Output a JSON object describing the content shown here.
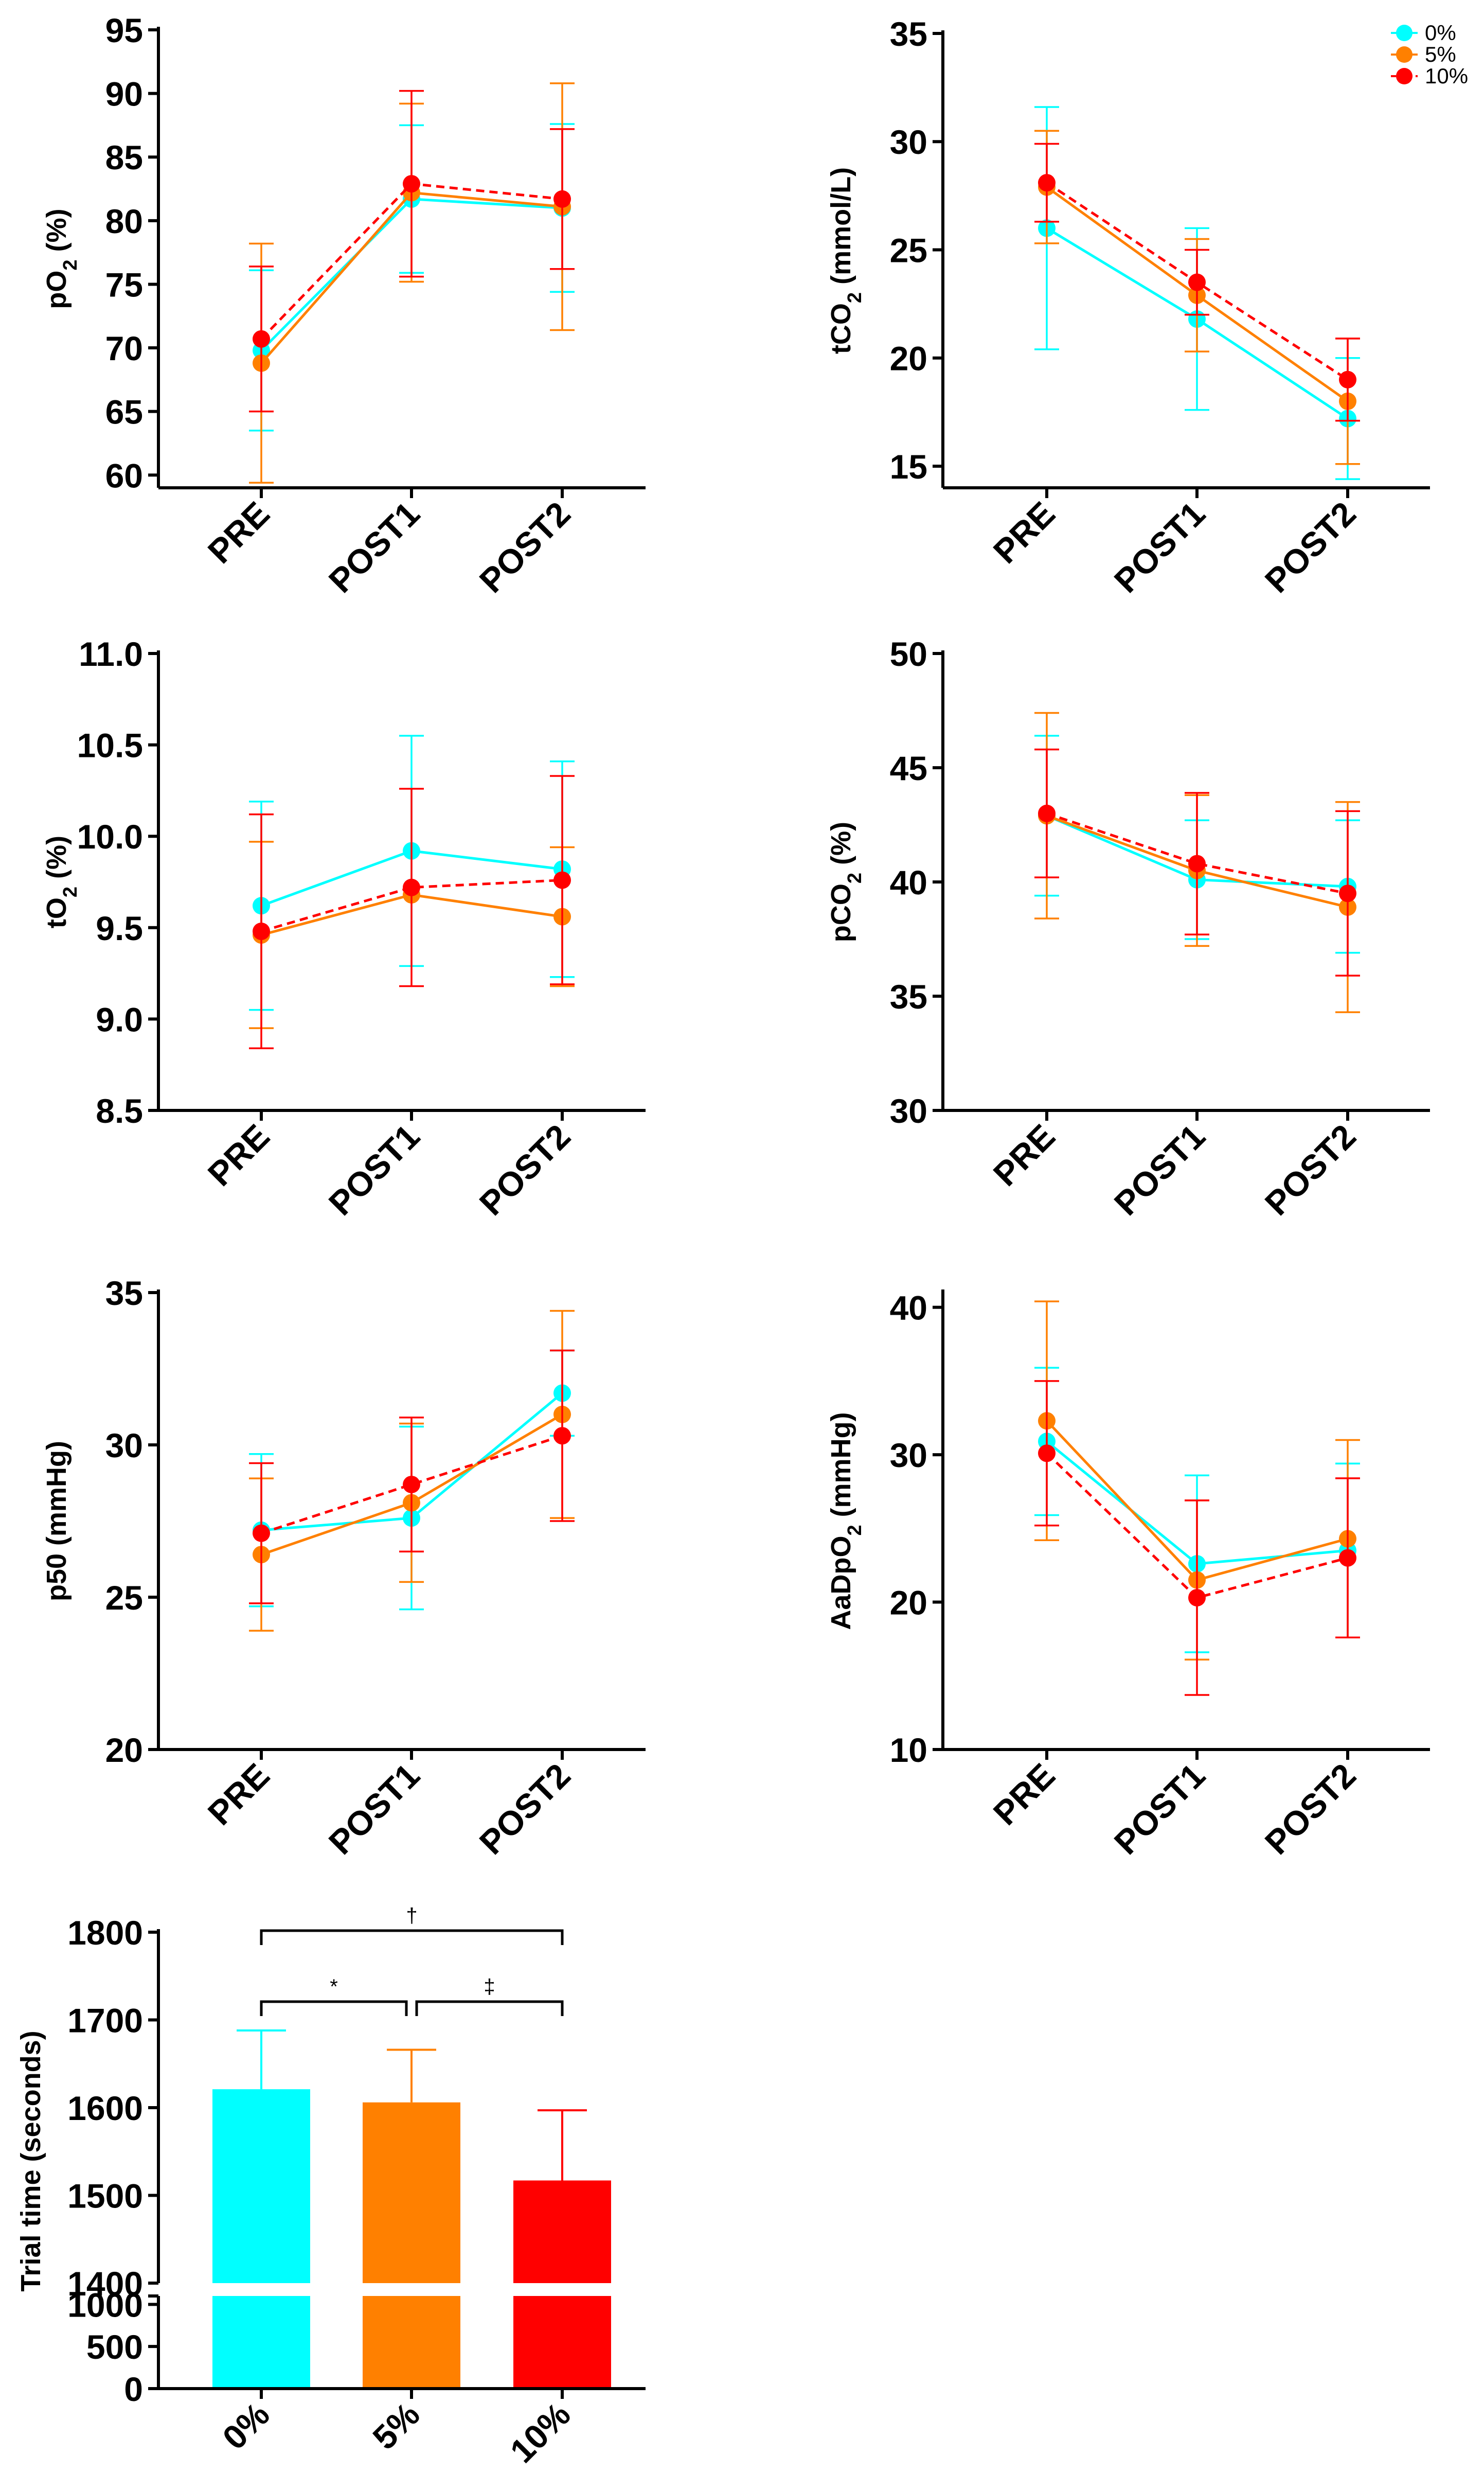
{
  "colors": {
    "0%": "#00FFFF",
    "5%": "#FF8000",
    "10%": "#FF0000"
  },
  "legend": {
    "entries": [
      "0%",
      "5%",
      "10%"
    ],
    "placement": "top-right of tCO2 panel"
  },
  "chart_data": [
    {
      "id": "po2",
      "type": "line",
      "title": "",
      "xlabel": "",
      "ylabel_main": "pO",
      "ylabel_sub": "2",
      "ylabel_tail": " (%)",
      "categories": [
        "PRE",
        "POST1",
        "POST2"
      ],
      "ylim": [
        59,
        95
      ],
      "yticks": [
        60,
        65,
        70,
        75,
        80,
        85,
        90,
        95
      ],
      "ytick_labels": [
        "60",
        "65",
        "70",
        "75",
        "80",
        "85",
        "90",
        "95"
      ],
      "series": [
        {
          "name": "0%",
          "values": [
            69.8,
            81.7,
            81.0
          ],
          "errors": [
            6.3,
            5.8,
            6.6
          ],
          "dashed": false
        },
        {
          "name": "5%",
          "values": [
            68.8,
            82.2,
            81.1
          ],
          "errors": [
            9.4,
            7.0,
            9.7
          ],
          "dashed": false
        },
        {
          "name": "10%",
          "values": [
            70.7,
            82.9,
            81.7
          ],
          "errors": [
            5.7,
            7.3,
            5.5
          ],
          "dashed": true
        }
      ]
    },
    {
      "id": "tco2",
      "type": "line",
      "title": "",
      "xlabel": "",
      "ylabel_main": "tCO",
      "ylabel_sub": "2",
      "ylabel_tail": " (mmol/L)",
      "categories": [
        "PRE",
        "POST1",
        "POST2"
      ],
      "ylim": [
        14,
        35
      ],
      "yticks": [
        15,
        20,
        25,
        30,
        35
      ],
      "ytick_labels": [
        "15",
        "20",
        "25",
        "30",
        "35"
      ],
      "series": [
        {
          "name": "0%",
          "values": [
            26.0,
            21.8,
            17.2
          ],
          "errors": [
            5.6,
            4.2,
            2.8
          ],
          "dashed": false
        },
        {
          "name": "5%",
          "values": [
            27.9,
            22.9,
            18.0
          ],
          "errors": [
            2.6,
            2.6,
            2.9
          ],
          "dashed": false
        },
        {
          "name": "10%",
          "values": [
            28.1,
            23.5,
            19.0
          ],
          "errors": [
            1.8,
            1.5,
            1.9
          ],
          "dashed": true
        }
      ]
    },
    {
      "id": "to2",
      "type": "line",
      "title": "",
      "xlabel": "",
      "ylabel_main": "tO",
      "ylabel_sub": "2",
      "ylabel_tail": " (%)",
      "categories": [
        "PRE",
        "POST1",
        "POST2"
      ],
      "ylim": [
        8.5,
        11.0
      ],
      "yticks": [
        8.5,
        9.0,
        9.5,
        10.0,
        10.5,
        11.0
      ],
      "ytick_labels": [
        "8.5",
        "9.0",
        "9.5",
        "10.0",
        "10.5",
        "11.0"
      ],
      "series": [
        {
          "name": "0%",
          "values": [
            9.62,
            9.92,
            9.82
          ],
          "errors": [
            0.57,
            0.63,
            0.59
          ],
          "dashed": false
        },
        {
          "name": "5%",
          "values": [
            9.46,
            9.68,
            9.56
          ],
          "errors": [
            0.51,
            0.0,
            0.38
          ],
          "dashed": false
        },
        {
          "name": "10%",
          "values": [
            9.48,
            9.72,
            9.76
          ],
          "errors": [
            0.64,
            0.54,
            0.57
          ],
          "dashed": true
        }
      ]
    },
    {
      "id": "pco2",
      "type": "line",
      "title": "",
      "xlabel": "",
      "ylabel_main": "pCO",
      "ylabel_sub": "2",
      "ylabel_tail": " (%)",
      "categories": [
        "PRE",
        "POST1",
        "POST2"
      ],
      "ylim": [
        30,
        50
      ],
      "yticks": [
        30,
        35,
        40,
        45,
        50
      ],
      "ytick_labels": [
        "30",
        "35",
        "40",
        "45",
        "50"
      ],
      "series": [
        {
          "name": "0%",
          "values": [
            42.9,
            40.1,
            39.8
          ],
          "errors": [
            3.5,
            2.6,
            2.9
          ],
          "dashed": false
        },
        {
          "name": "5%",
          "values": [
            42.9,
            40.5,
            38.9
          ],
          "errors": [
            4.5,
            3.3,
            4.6
          ],
          "dashed": false
        },
        {
          "name": "10%",
          "values": [
            43.0,
            40.8,
            39.5
          ],
          "errors": [
            2.8,
            3.1,
            3.6
          ],
          "dashed": true
        }
      ]
    },
    {
      "id": "p50",
      "type": "line",
      "title": "",
      "xlabel": "",
      "ylabel_main": "p50 (mmHg)",
      "ylabel_sub": "",
      "ylabel_tail": "",
      "categories": [
        "PRE",
        "POST1",
        "POST2"
      ],
      "ylim": [
        20,
        35
      ],
      "yticks": [
        20,
        25,
        30,
        35
      ],
      "ytick_labels": [
        "20",
        "25",
        "30",
        "35"
      ],
      "series": [
        {
          "name": "0%",
          "values": [
            27.2,
            27.6,
            31.7
          ],
          "errors": [
            2.5,
            3.0,
            1.4
          ],
          "dashed": false
        },
        {
          "name": "5%",
          "values": [
            26.4,
            28.1,
            31.0
          ],
          "errors": [
            2.5,
            2.6,
            3.4
          ],
          "dashed": false
        },
        {
          "name": "10%",
          "values": [
            27.1,
            28.7,
            30.3
          ],
          "errors": [
            2.3,
            2.2,
            2.8
          ],
          "dashed": true
        }
      ]
    },
    {
      "id": "aadpo2",
      "type": "line",
      "title": "",
      "xlabel": "",
      "ylabel_main": "AaDpO",
      "ylabel_sub": "2",
      "ylabel_tail": " (mmHg)",
      "categories": [
        "PRE",
        "POST1",
        "POST2"
      ],
      "ylim": [
        10,
        41
      ],
      "yticks": [
        10,
        20,
        30,
        40
      ],
      "ytick_labels": [
        "10",
        "20",
        "30",
        "40"
      ],
      "series": [
        {
          "name": "0%",
          "values": [
            30.9,
            22.6,
            23.5
          ],
          "errors": [
            5.0,
            6.0,
            5.9
          ],
          "dashed": false
        },
        {
          "name": "5%",
          "values": [
            32.3,
            21.5,
            24.3
          ],
          "errors": [
            8.1,
            5.4,
            6.7
          ],
          "dashed": false
        },
        {
          "name": "10%",
          "values": [
            30.1,
            20.3,
            23.0
          ],
          "errors": [
            4.9,
            6.6,
            5.4
          ],
          "dashed": true
        }
      ]
    },
    {
      "id": "trial",
      "type": "bar",
      "title": "",
      "xlabel": "",
      "ylabel": "Trial time (seconds)",
      "categories": [
        "0%",
        "5%",
        "10%"
      ],
      "values": [
        1621,
        1606,
        1517
      ],
      "errors": [
        67,
        60,
        80
      ],
      "axis_break": {
        "upper_range": [
          1400,
          1800
        ],
        "lower_range": [
          0,
          1100
        ]
      },
      "upper_yticks": [
        1400,
        1500,
        1600,
        1700,
        1800
      ],
      "upper_ytick_labels": [
        "1400",
        "1500",
        "1600",
        "1700",
        "1800"
      ],
      "lower_yticks": [
        0,
        500,
        1000
      ],
      "lower_ytick_labels": [
        "0",
        "500",
        "1000"
      ],
      "significance": [
        {
          "from": "0%",
          "to": "10%",
          "symbol": "†",
          "level": "high"
        },
        {
          "from": "0%",
          "to": "5%",
          "symbol": "*",
          "level": "low"
        },
        {
          "from": "5%",
          "to": "10%",
          "symbol": "‡",
          "level": "low"
        }
      ]
    }
  ]
}
